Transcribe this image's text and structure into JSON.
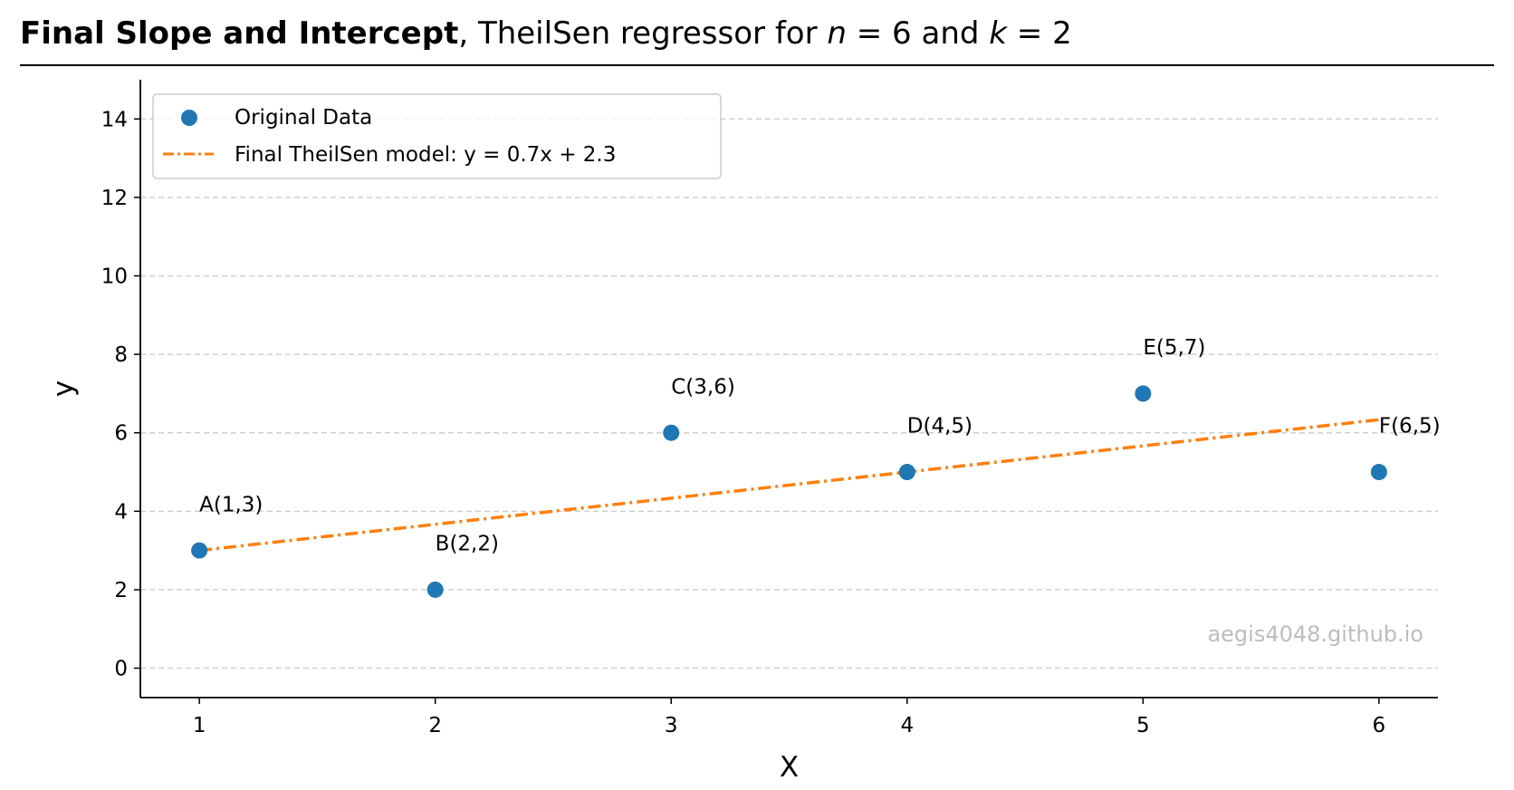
{
  "title": {
    "bold": "Final Slope and Intercept",
    "rest_prefix": ", TheilSen regressor for ",
    "n_var": "n",
    "n_expr": " = 6 and ",
    "k_var": "k",
    "k_expr": " = 2"
  },
  "watermark": "aegis4048.github.io",
  "chart_data": {
    "type": "scatter",
    "title": "Final Slope and Intercept, TheilSen regressor for n = 6 and k = 2",
    "xlabel": "X",
    "ylabel": "y",
    "xlim": [
      0.75,
      6.25
    ],
    "ylim": [
      -0.75,
      15.0
    ],
    "xticks": [
      1,
      2,
      3,
      4,
      5,
      6
    ],
    "yticks": [
      0,
      2,
      4,
      6,
      8,
      10,
      12,
      14
    ],
    "grid": "y-dashed",
    "legend_position": "top-left",
    "series": [
      {
        "name": "Original Data",
        "kind": "scatter",
        "color": "#1f77b4",
        "points": [
          {
            "label": "A(1,3)",
            "x": 1,
            "y": 3
          },
          {
            "label": "B(2,2)",
            "x": 2,
            "y": 2
          },
          {
            "label": "C(3,6)",
            "x": 3,
            "y": 6
          },
          {
            "label": "D(4,5)",
            "x": 4,
            "y": 5
          },
          {
            "label": "E(5,7)",
            "x": 5,
            "y": 7
          },
          {
            "label": "F(6,5)",
            "x": 6,
            "y": 5
          }
        ]
      },
      {
        "name": "Final TheilSen model:  y = 0.7x + 2.3",
        "kind": "line",
        "style": "dash-dot",
        "color": "#ff7f0e",
        "slope": 0.6667,
        "intercept": 2.3333,
        "x_range": [
          1,
          6
        ]
      }
    ]
  }
}
